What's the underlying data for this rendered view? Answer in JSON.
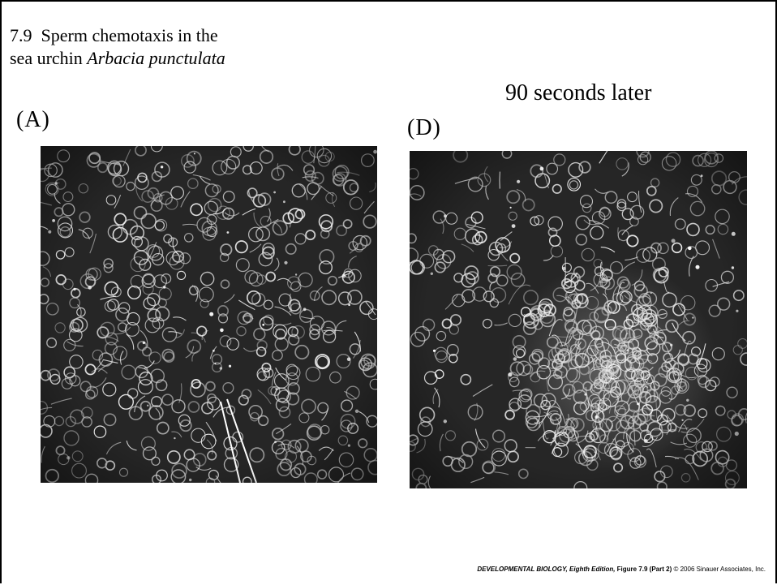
{
  "figure": {
    "number": "7.9",
    "title_line1": "Sperm chemotaxis in the",
    "title_line2_prefix": "sea urchin ",
    "species": "Arbacia punctulata"
  },
  "panels": [
    {
      "label": "(A)",
      "caption": ""
    },
    {
      "label": "(D)",
      "caption": "90 seconds later"
    }
  ],
  "footer": {
    "book": "DEVELOPMENTAL BIOLOGY, Eighth Edition,",
    "figure": "Figure 7.9 (Part 2)",
    "copyright": "© 2006 Sinauer Associates, Inc."
  }
}
